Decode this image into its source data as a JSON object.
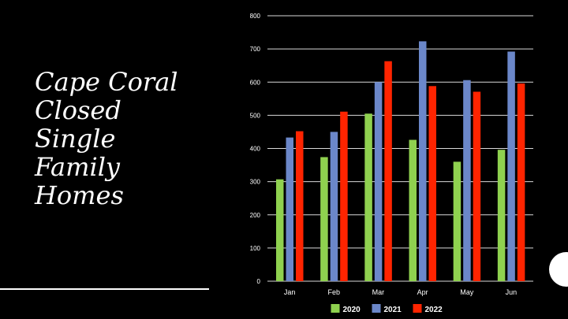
{
  "slide": {
    "title_lines": [
      "Cape Coral",
      "Closed",
      "Single",
      "Family",
      "Homes"
    ]
  },
  "colors": {
    "background": "#000000",
    "text": "#ffffff",
    "grid": "#d9d9d9"
  },
  "chart_data": {
    "type": "bar",
    "categories": [
      "Jan",
      "Feb",
      "Mar",
      "Apr",
      "May",
      "Jun"
    ],
    "series": [
      {
        "name": "2020",
        "color": "#8fd14f",
        "values": [
          307,
          374,
          505,
          426,
          360,
          396
        ]
      },
      {
        "name": "2021",
        "color": "#6b87c9",
        "values": [
          433,
          450,
          600,
          723,
          606,
          692
        ]
      },
      {
        "name": "2022",
        "color": "#ff2400",
        "values": [
          452,
          511,
          663,
          588,
          571,
          596
        ]
      }
    ],
    "ylim": [
      0,
      800
    ],
    "yticks": [
      0,
      100,
      200,
      300,
      400,
      500,
      600,
      700,
      800
    ],
    "grid": true,
    "legend_position": "bottom"
  }
}
